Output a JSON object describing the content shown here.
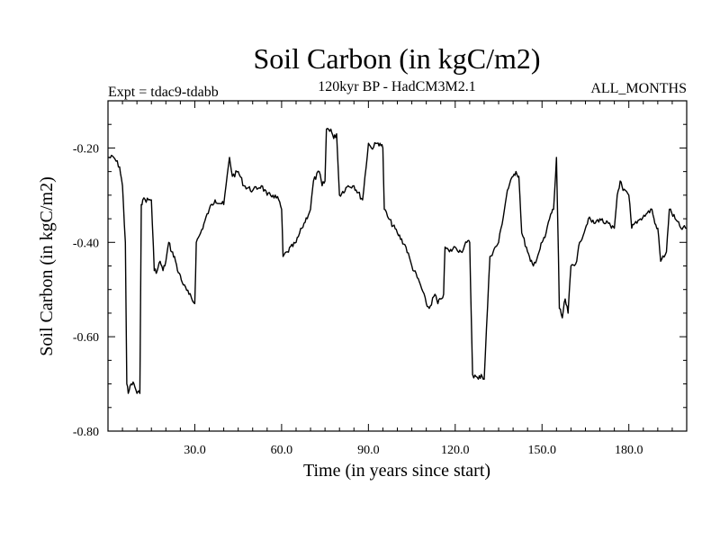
{
  "chart_data": {
    "type": "line",
    "title": "Soil Carbon (in kgC/m2)",
    "subtitle": "120kyr BP - HadCM3M2.1",
    "experiment_label": "Expt = tdac9-tdabb",
    "period_label": "ALL_MONTHS",
    "xlabel": "Time (in years since start)",
    "ylabel": "Soil Carbon (in kgC/m2)",
    "xlim": [
      0,
      200
    ],
    "ylim": [
      -0.8,
      -0.1
    ],
    "xticks": [
      30,
      60,
      90,
      120,
      150,
      180
    ],
    "xtick_labels": [
      "30.0",
      "60.0",
      "90.0",
      "120.0",
      "150.0",
      "180.0"
    ],
    "yticks": [
      -0.8,
      -0.6,
      -0.4,
      -0.2
    ],
    "ytick_labels": [
      "-0.80",
      "-0.60",
      "-0.40",
      "-0.20"
    ],
    "grid": false,
    "line_color": "#000000",
    "series": [
      {
        "x": [
          0,
          2,
          4,
          5,
          6,
          6.5,
          7,
          8,
          9,
          10,
          11,
          11.5,
          12,
          14,
          15,
          16,
          17,
          18,
          19,
          20,
          21,
          22,
          23,
          24,
          25,
          26,
          28,
          30,
          30.5,
          32,
          35,
          37,
          40,
          42,
          43,
          45,
          47,
          50,
          53,
          55,
          57,
          59,
          60,
          60.5,
          62,
          65,
          67,
          70,
          71,
          73,
          74,
          75,
          75.5,
          77,
          78,
          79,
          80,
          83,
          85,
          88,
          90,
          91,
          93,
          94,
          95,
          95.5,
          97,
          100,
          103,
          105,
          108,
          110,
          111,
          113,
          114,
          115,
          116,
          116.5,
          118,
          120,
          122,
          124,
          125,
          126,
          128,
          129,
          130,
          132,
          135,
          137,
          138,
          140,
          141,
          142,
          143,
          145,
          146,
          147,
          149,
          150,
          151,
          153,
          154,
          155,
          156,
          157,
          158,
          159,
          160,
          162,
          163,
          165,
          166,
          168,
          170,
          172,
          173,
          174,
          175,
          176,
          177,
          178,
          180,
          181,
          182,
          184,
          186,
          188,
          189,
          190,
          191,
          193,
          194,
          196,
          198,
          200
        ],
        "y": [
          -0.22,
          -0.22,
          -0.24,
          -0.28,
          -0.4,
          -0.7,
          -0.72,
          -0.7,
          -0.7,
          -0.72,
          -0.72,
          -0.32,
          -0.31,
          -0.31,
          -0.31,
          -0.46,
          -0.46,
          -0.44,
          -0.46,
          -0.44,
          -0.4,
          -0.42,
          -0.43,
          -0.46,
          -0.47,
          -0.49,
          -0.51,
          -0.53,
          -0.4,
          -0.38,
          -0.33,
          -0.31,
          -0.32,
          -0.22,
          -0.26,
          -0.25,
          -0.28,
          -0.29,
          -0.28,
          -0.3,
          -0.3,
          -0.31,
          -0.33,
          -0.43,
          -0.42,
          -0.4,
          -0.37,
          -0.33,
          -0.27,
          -0.25,
          -0.28,
          -0.27,
          -0.16,
          -0.16,
          -0.18,
          -0.17,
          -0.3,
          -0.28,
          -0.28,
          -0.31,
          -0.19,
          -0.2,
          -0.19,
          -0.19,
          -0.2,
          -0.33,
          -0.35,
          -0.38,
          -0.41,
          -0.45,
          -0.49,
          -0.53,
          -0.54,
          -0.51,
          -0.53,
          -0.52,
          -0.51,
          -0.41,
          -0.42,
          -0.41,
          -0.42,
          -0.4,
          -0.4,
          -0.68,
          -0.69,
          -0.68,
          -0.69,
          -0.43,
          -0.4,
          -0.33,
          -0.29,
          -0.26,
          -0.25,
          -0.26,
          -0.38,
          -0.42,
          -0.44,
          -0.45,
          -0.42,
          -0.4,
          -0.39,
          -0.34,
          -0.33,
          -0.22,
          -0.54,
          -0.56,
          -0.52,
          -0.55,
          -0.45,
          -0.44,
          -0.4,
          -0.37,
          -0.35,
          -0.36,
          -0.35,
          -0.36,
          -0.36,
          -0.37,
          -0.37,
          -0.3,
          -0.27,
          -0.29,
          -0.3,
          -0.37,
          -0.36,
          -0.35,
          -0.34,
          -0.33,
          -0.36,
          -0.37,
          -0.44,
          -0.42,
          -0.33,
          -0.35,
          -0.37,
          -0.37
        ]
      }
    ]
  }
}
